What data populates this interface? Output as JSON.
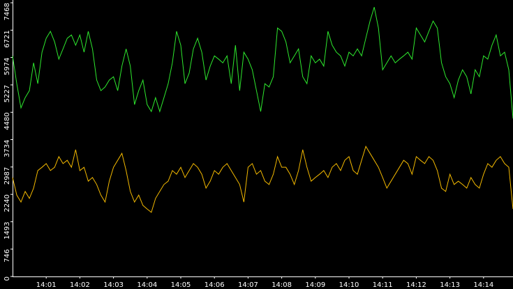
{
  "chart_data": {
    "type": "line",
    "categories": [
      null,
      null,
      null,
      null,
      null,
      null,
      null,
      null,
      "14:01",
      null,
      null,
      null,
      null,
      null,
      null,
      null,
      "14:02",
      null,
      null,
      null,
      null,
      null,
      null,
      null,
      "14:03",
      null,
      null,
      null,
      null,
      null,
      null,
      null,
      "14:04",
      null,
      null,
      null,
      null,
      null,
      null,
      null,
      "14:05",
      null,
      null,
      null,
      null,
      null,
      null,
      null,
      "14:06",
      null,
      null,
      null,
      null,
      null,
      null,
      null,
      "14:07",
      null,
      null,
      null,
      null,
      null,
      null,
      null,
      "14:08",
      null,
      null,
      null,
      null,
      null,
      null,
      null,
      "14:09",
      null,
      null,
      null,
      null,
      null,
      null,
      null,
      "14:10",
      null,
      null,
      null,
      null,
      null,
      null,
      null,
      "14:11",
      null,
      null,
      null,
      null,
      null,
      null,
      null,
      "14:12",
      null,
      null,
      null,
      null,
      null,
      null,
      null,
      "14:13",
      null,
      null,
      null,
      null,
      null,
      null,
      null,
      "14:14",
      null,
      null,
      null,
      null,
      null,
      null,
      null
    ],
    "series": [
      {
        "color": "#2ee82e",
        "values": [
          6020,
          5260,
          4600,
          4880,
          5070,
          5830,
          5260,
          6120,
          6500,
          6690,
          6400,
          5930,
          6210,
          6500,
          6590,
          6310,
          6590,
          6120,
          6690,
          6210,
          5360,
          5070,
          5170,
          5360,
          5450,
          5070,
          5740,
          6210,
          5740,
          4690,
          5070,
          5360,
          4690,
          4500,
          4880,
          4500,
          4880,
          5260,
          5830,
          6690,
          6310,
          5260,
          5550,
          6210,
          6500,
          6120,
          5360,
          5740,
          6020,
          5930,
          5830,
          6020,
          5260,
          6310,
          5070,
          6120,
          5930,
          5640,
          5070,
          4500,
          5260,
          5170,
          5450,
          6780,
          6690,
          6400,
          5830,
          6020,
          6210,
          5450,
          5260,
          6020,
          5830,
          5930,
          5740,
          6690,
          6310,
          6120,
          6020,
          5740,
          6120,
          6020,
          6210,
          6020,
          6500,
          6970,
          7350,
          6780,
          5640,
          5830,
          6020,
          5830,
          5930,
          6020,
          6120,
          5930,
          6780,
          6590,
          6400,
          6690,
          6970,
          6780,
          5830,
          5450,
          5260,
          4880,
          5360,
          5640,
          5450,
          4980,
          5640,
          5450,
          6020,
          5930,
          6310,
          6590,
          6020,
          6120,
          5640,
          4310
        ]
      },
      {
        "color": "#f2b800",
        "values": [
          2700,
          2220,
          2030,
          2320,
          2130,
          2410,
          2890,
          2980,
          3080,
          2890,
          2980,
          3270,
          3080,
          3170,
          2980,
          3460,
          2890,
          2980,
          2600,
          2700,
          2510,
          2220,
          2030,
          2600,
          2980,
          3170,
          3360,
          2890,
          2320,
          2030,
          2220,
          1940,
          1840,
          1750,
          2130,
          2320,
          2510,
          2600,
          2890,
          2790,
          2980,
          2700,
          2890,
          3080,
          2980,
          2790,
          2410,
          2600,
          2890,
          2790,
          2980,
          3080,
          2890,
          2700,
          2510,
          2030,
          2980,
          3080,
          2790,
          2890,
          2600,
          2510,
          2790,
          3270,
          2980,
          2980,
          2790,
          2510,
          2890,
          3460,
          2980,
          2600,
          2700,
          2790,
          2890,
          2700,
          2980,
          3080,
          2890,
          3170,
          3270,
          2890,
          2790,
          3170,
          3550,
          3360,
          3170,
          2980,
          2700,
          2410,
          2600,
          2790,
          2980,
          3170,
          3080,
          2790,
          3270,
          3170,
          3080,
          3270,
          3170,
          2890,
          2410,
          2320,
          2790,
          2510,
          2600,
          2510,
          2410,
          2700,
          2510,
          2410,
          2790,
          3080,
          2980,
          3170,
          3270,
          3080,
          2980,
          1840
        ]
      }
    ],
    "ylim": [
      0,
      7468
    ],
    "yticks": [
      0,
      746,
      1493,
      2240,
      2987,
      3734,
      4480,
      5227,
      5974,
      6721,
      7468
    ],
    "axis_color": "#ffffff"
  }
}
